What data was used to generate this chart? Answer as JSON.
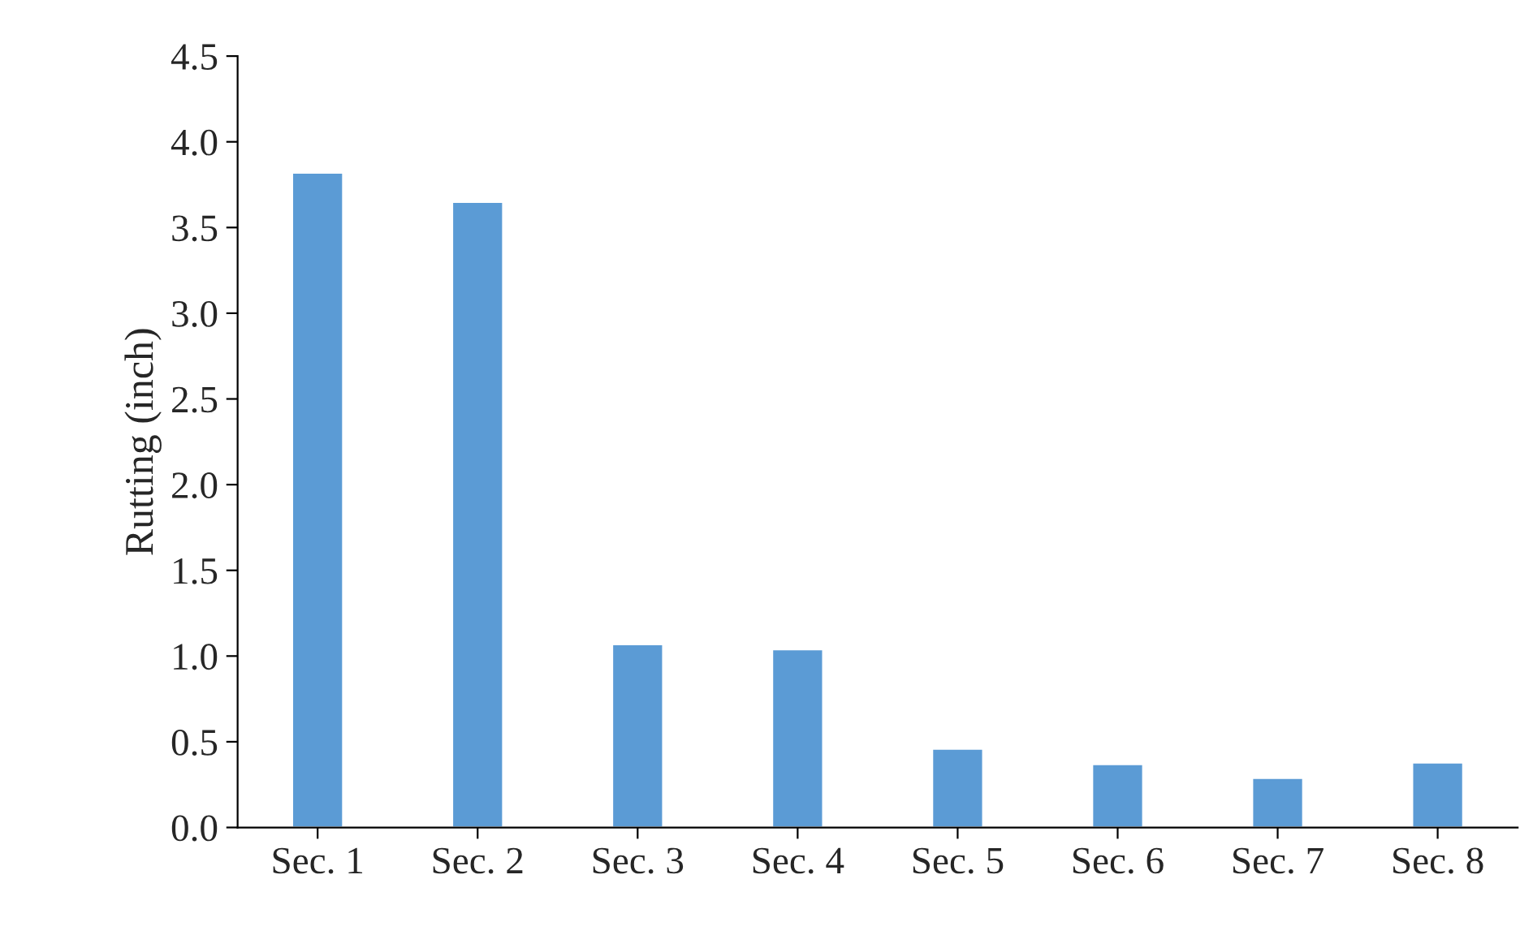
{
  "chart_data": {
    "type": "bar",
    "ylabel": "Rutting (inch)",
    "categories": [
      "Sec. 1",
      "Sec. 2",
      "Sec. 3",
      "Sec. 4",
      "Sec. 5",
      "Sec. 6",
      "Sec. 7",
      "Sec. 8"
    ],
    "values": [
      3.82,
      3.65,
      1.07,
      1.04,
      0.46,
      0.37,
      0.29,
      0.38
    ],
    "color": "#5b9bd5",
    "ylim": [
      0,
      4.5
    ],
    "yticks": [
      {
        "value": 0,
        "label": "0.0"
      },
      {
        "value": 0.5,
        "label": "0.5"
      },
      {
        "value": 1,
        "label": "1.0"
      },
      {
        "value": 1.5,
        "label": "1.5"
      },
      {
        "value": 2,
        "label": "2.0"
      },
      {
        "value": 2.5,
        "label": "2.5"
      },
      {
        "value": 3,
        "label": "3.0"
      },
      {
        "value": 3.5,
        "label": "3.5"
      },
      {
        "value": 4,
        "label": "4.0"
      },
      {
        "value": 4.5,
        "label": "4.5"
      }
    ],
    "grid": false,
    "legend": false
  }
}
